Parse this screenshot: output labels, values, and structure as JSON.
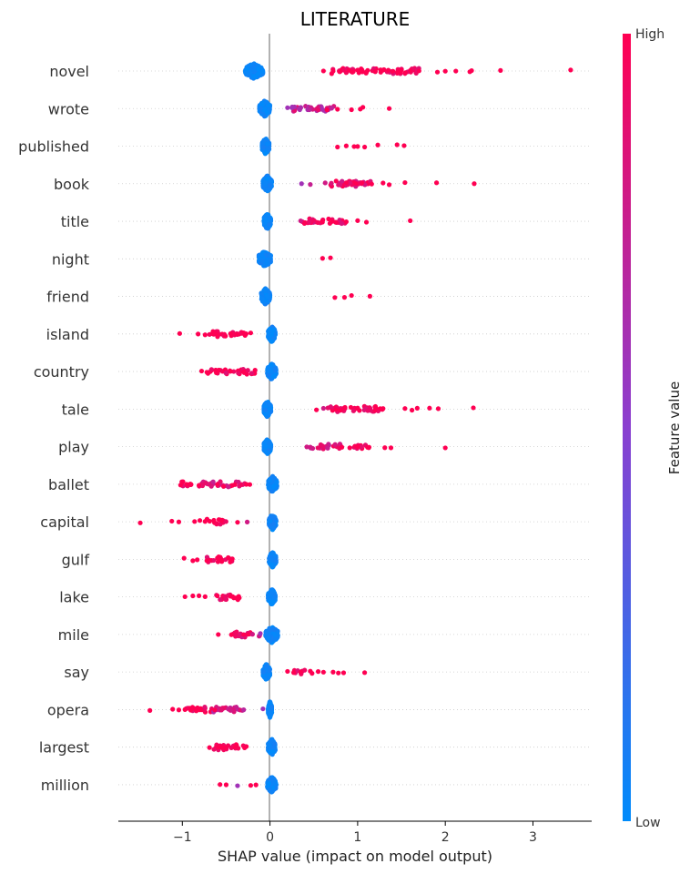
{
  "chart_data": {
    "type": "scatter",
    "subtype": "shap-beeswarm",
    "title": "LITERATURE",
    "xlabel": "SHAP value (impact on model output)",
    "xlim": [
      -1.73,
      3.67
    ],
    "xticks": [
      -1,
      0,
      1,
      2,
      3
    ],
    "xtick_labels": [
      "−1",
      "0",
      "1",
      "2",
      "3"
    ],
    "grid": "horizontal dotted per feature",
    "colorbar": {
      "label": "Feature value",
      "high_label": "High",
      "low_label": "Low",
      "high_color": "#ff0052",
      "low_color": "#008bfb",
      "placement": "right"
    },
    "features": [
      {
        "name": "novel",
        "low_cluster": [
          -0.18,
          0.1
        ],
        "points": [
          [
            0.61,
            1
          ],
          [
            0.72,
            1
          ],
          [
            0.8,
            1
          ],
          [
            0.9,
            1
          ],
          [
            0.95,
            1
          ],
          [
            1.0,
            1
          ],
          [
            1.05,
            1
          ],
          [
            1.1,
            1
          ],
          [
            1.2,
            1
          ],
          [
            1.3,
            1
          ],
          [
            1.35,
            1
          ],
          [
            1.4,
            1
          ],
          [
            1.5,
            1
          ],
          [
            1.6,
            1
          ],
          [
            1.7,
            1
          ],
          [
            1.91,
            1
          ],
          [
            2.0,
            1
          ],
          [
            2.12,
            1
          ],
          [
            2.28,
            1
          ],
          [
            2.3,
            1
          ],
          [
            2.63,
            1
          ],
          [
            3.43,
            1
          ]
        ],
        "dense": [
          [
            0.7,
            1.7,
            1
          ]
        ]
      },
      {
        "name": "wrote",
        "low_cluster": [
          -0.06,
          0.06
        ],
        "points": [
          [
            0.2,
            0.6
          ],
          [
            0.25,
            0.6
          ],
          [
            0.35,
            0.65
          ],
          [
            0.45,
            0.7
          ],
          [
            0.55,
            0.9
          ],
          [
            0.65,
            1
          ],
          [
            0.77,
            1
          ],
          [
            0.93,
            1
          ],
          [
            1.03,
            1
          ],
          [
            1.06,
            1
          ],
          [
            1.36,
            1
          ]
        ],
        "dense": [
          [
            0.25,
            0.77,
            0.75
          ]
        ]
      },
      {
        "name": "published",
        "low_cluster": [
          -0.05,
          0.04
        ],
        "points": [
          [
            0.77,
            1
          ],
          [
            0.87,
            1
          ],
          [
            0.96,
            1
          ],
          [
            1.0,
            1
          ],
          [
            1.08,
            1
          ],
          [
            1.23,
            1
          ],
          [
            1.45,
            1
          ],
          [
            1.53,
            1
          ]
        ],
        "dense": []
      },
      {
        "name": "book",
        "low_cluster": [
          -0.03,
          0.05
        ],
        "points": [
          [
            0.36,
            0.6
          ],
          [
            0.46,
            0.75
          ],
          [
            0.63,
            0.8
          ],
          [
            0.7,
            0.85
          ],
          [
            0.8,
            0.85
          ],
          [
            0.87,
            1
          ],
          [
            0.98,
            1
          ],
          [
            1.05,
            1
          ],
          [
            1.16,
            1
          ],
          [
            1.29,
            1
          ],
          [
            1.36,
            1
          ],
          [
            1.54,
            1
          ],
          [
            1.9,
            1
          ],
          [
            2.33,
            1
          ]
        ],
        "dense": [
          [
            0.65,
            1.16,
            0.9
          ]
        ]
      },
      {
        "name": "title",
        "low_cluster": [
          -0.03,
          0.04
        ],
        "points": [
          [
            0.35,
            0.8
          ],
          [
            0.45,
            0.9
          ],
          [
            0.6,
            1
          ],
          [
            0.75,
            1
          ],
          [
            0.87,
            1
          ],
          [
            1.0,
            1
          ],
          [
            1.1,
            1
          ],
          [
            1.6,
            1
          ]
        ],
        "dense": [
          [
            0.35,
            0.87,
            0.95
          ]
        ]
      },
      {
        "name": "night",
        "low_cluster": [
          -0.06,
          0.07
        ],
        "points": [
          [
            0.6,
            1
          ],
          [
            0.69,
            1
          ]
        ],
        "dense": []
      },
      {
        "name": "friend",
        "low_cluster": [
          -0.05,
          0.05
        ],
        "points": [
          [
            0.74,
            1
          ],
          [
            0.85,
            1
          ],
          [
            0.93,
            1
          ],
          [
            1.14,
            1
          ]
        ],
        "dense": []
      },
      {
        "name": "island",
        "low_cluster": [
          0.02,
          0.04
        ],
        "points": [
          [
            -1.03,
            1
          ],
          [
            -0.82,
            1
          ],
          [
            -0.74,
            1
          ],
          [
            -0.6,
            1
          ],
          [
            -0.45,
            1
          ],
          [
            -0.3,
            1
          ],
          [
            -0.22,
            1
          ]
        ],
        "dense": [
          [
            -0.69,
            -0.22,
            1
          ]
        ]
      },
      {
        "name": "country",
        "low_cluster": [
          0.02,
          0.05
        ],
        "points": [
          [
            -0.78,
            1
          ],
          [
            -0.72,
            1
          ],
          [
            -0.6,
            1
          ],
          [
            -0.45,
            1
          ],
          [
            -0.3,
            1
          ],
          [
            -0.17,
            1
          ]
        ],
        "dense": [
          [
            -0.72,
            -0.17,
            1
          ]
        ]
      },
      {
        "name": "tale",
        "low_cluster": [
          -0.03,
          0.04
        ],
        "points": [
          [
            0.53,
            1
          ],
          [
            0.61,
            0.8
          ],
          [
            0.66,
            0.9
          ],
          [
            0.8,
            1
          ],
          [
            1.0,
            1
          ],
          [
            1.2,
            1
          ],
          [
            1.29,
            1
          ],
          [
            1.54,
            1
          ],
          [
            1.62,
            1
          ],
          [
            1.68,
            1
          ],
          [
            1.82,
            1
          ],
          [
            1.92,
            1
          ],
          [
            2.32,
            1
          ]
        ],
        "dense": [
          [
            0.66,
            1.29,
            1
          ]
        ]
      },
      {
        "name": "play",
        "low_cluster": [
          -0.03,
          0.04
        ],
        "points": [
          [
            0.42,
            0.8
          ],
          [
            0.46,
            0.8
          ],
          [
            0.6,
            0.9
          ],
          [
            0.82,
            1
          ],
          [
            0.91,
            1
          ],
          [
            1.0,
            1
          ],
          [
            1.13,
            1
          ],
          [
            1.31,
            1
          ],
          [
            1.38,
            1
          ],
          [
            2.0,
            1
          ]
        ],
        "dense": [
          [
            0.46,
            0.82,
            0.85
          ],
          [
            0.91,
            1.13,
            1
          ]
        ]
      },
      {
        "name": "ballet",
        "low_cluster": [
          0.03,
          0.05
        ],
        "points": [
          [
            -1.02,
            1
          ],
          [
            -0.95,
            1
          ],
          [
            -0.9,
            1
          ],
          [
            -0.81,
            1
          ],
          [
            -0.6,
            1
          ],
          [
            -0.4,
            1
          ],
          [
            -0.27,
            1
          ],
          [
            -0.23,
            1
          ]
        ],
        "dense": [
          [
            -1.02,
            -0.9,
            1
          ],
          [
            -0.81,
            -0.27,
            0.9
          ]
        ]
      },
      {
        "name": "capital",
        "low_cluster": [
          0.03,
          0.04
        ],
        "points": [
          [
            -1.48,
            1
          ],
          [
            -1.12,
            1
          ],
          [
            -1.04,
            1
          ],
          [
            -0.86,
            1
          ],
          [
            -0.8,
            1
          ],
          [
            -0.74,
            1
          ],
          [
            -0.55,
            1
          ],
          [
            -0.37,
            1
          ],
          [
            -0.26,
            0.8
          ]
        ],
        "dense": [
          [
            -0.74,
            -0.5,
            1
          ]
        ]
      },
      {
        "name": "gulf",
        "low_cluster": [
          0.03,
          0.04
        ],
        "points": [
          [
            -0.98,
            1
          ],
          [
            -0.88,
            1
          ],
          [
            -0.83,
            1
          ],
          [
            -0.72,
            1
          ],
          [
            -0.6,
            1
          ],
          [
            -0.43,
            1
          ]
        ],
        "dense": [
          [
            -0.72,
            -0.43,
            1
          ]
        ]
      },
      {
        "name": "lake",
        "low_cluster": [
          0.02,
          0.04
        ],
        "points": [
          [
            -0.97,
            1
          ],
          [
            -0.88,
            1
          ],
          [
            -0.81,
            1
          ],
          [
            -0.74,
            1
          ],
          [
            -0.6,
            1
          ],
          [
            -0.45,
            1
          ],
          [
            -0.35,
            1
          ]
        ],
        "dense": [
          [
            -0.65,
            -0.35,
            1
          ]
        ]
      },
      {
        "name": "mile",
        "low_cluster": [
          0.02,
          0.07
        ],
        "points": [
          [
            -0.59,
            1
          ],
          [
            -0.44,
            1
          ],
          [
            -0.3,
            1
          ],
          [
            -0.2,
            0.8
          ],
          [
            -0.11,
            0.6
          ]
        ],
        "dense": [
          [
            -0.44,
            -0.11,
            0.9
          ]
        ]
      },
      {
        "name": "say",
        "low_cluster": [
          -0.04,
          0.04
        ],
        "points": [
          [
            0.2,
            1
          ],
          [
            0.27,
            1
          ],
          [
            0.35,
            1
          ],
          [
            0.46,
            1
          ],
          [
            0.48,
            1
          ],
          [
            0.55,
            1
          ],
          [
            0.61,
            1
          ],
          [
            0.72,
            1
          ],
          [
            0.78,
            1
          ],
          [
            0.84,
            1
          ],
          [
            1.08,
            1
          ]
        ],
        "dense": [
          [
            0.27,
            0.4,
            1
          ]
        ]
      },
      {
        "name": "opera",
        "low_cluster": [
          0.0,
          0.02
        ],
        "points": [
          [
            -1.37,
            1
          ],
          [
            -1.11,
            1
          ],
          [
            -1.04,
            1
          ],
          [
            -0.97,
            1
          ],
          [
            -0.8,
            1
          ],
          [
            -0.63,
            1
          ],
          [
            -0.45,
            0.8
          ],
          [
            -0.3,
            0.7
          ],
          [
            -0.08,
            0.6
          ]
        ],
        "dense": [
          [
            -0.97,
            -0.63,
            1
          ],
          [
            -0.7,
            -0.3,
            0.8
          ]
        ]
      },
      {
        "name": "largest",
        "low_cluster": [
          0.02,
          0.04
        ],
        "points": [
          [
            -0.69,
            1
          ],
          [
            -0.55,
            1
          ],
          [
            -0.4,
            1
          ],
          [
            -0.27,
            1
          ]
        ],
        "dense": [
          [
            -0.69,
            -0.27,
            1
          ]
        ]
      },
      {
        "name": "million",
        "low_cluster": [
          0.02,
          0.05
        ],
        "points": [
          [
            -0.57,
            1
          ],
          [
            -0.5,
            1
          ],
          [
            -0.37,
            0.6
          ],
          [
            -0.22,
            1
          ],
          [
            -0.16,
            1
          ]
        ],
        "dense": []
      }
    ]
  }
}
